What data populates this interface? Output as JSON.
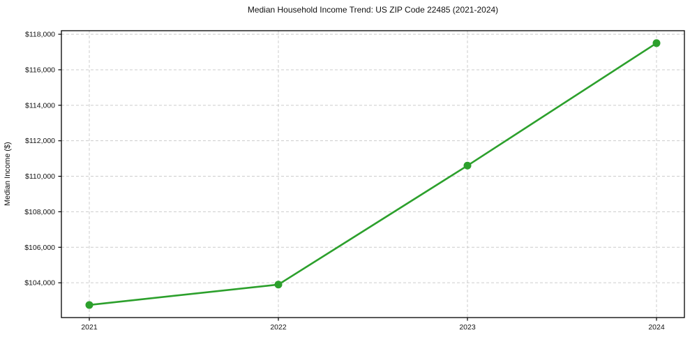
{
  "chart_data": {
    "type": "line",
    "title": "Median Household Income Trend: US ZIP Code 22485 (2021-2024)",
    "xlabel": "",
    "ylabel": "Median Income ($)",
    "categories": [
      "2021",
      "2022",
      "2023",
      "2024"
    ],
    "series": [
      {
        "name": "Median Household Income",
        "values": [
          102750,
          103900,
          110600,
          117500
        ]
      }
    ],
    "yticks": [
      104000,
      106000,
      108000,
      110000,
      112000,
      114000,
      116000,
      118000
    ],
    "ytick_labels": [
      "$104,000",
      "$106,000",
      "$108,000",
      "$110,000",
      "$112,000",
      "$114,000",
      "$116,000",
      "$118,000"
    ],
    "ylim": [
      102040,
      118200
    ],
    "grid": true,
    "grid_style": "dashed",
    "legend_position": "none",
    "colors": {
      "line": "#2ca02c",
      "marker": "#2ca02c",
      "grid": "#cccccc",
      "spine": "#000000",
      "text": "#111111",
      "background": "#ffffff"
    }
  }
}
